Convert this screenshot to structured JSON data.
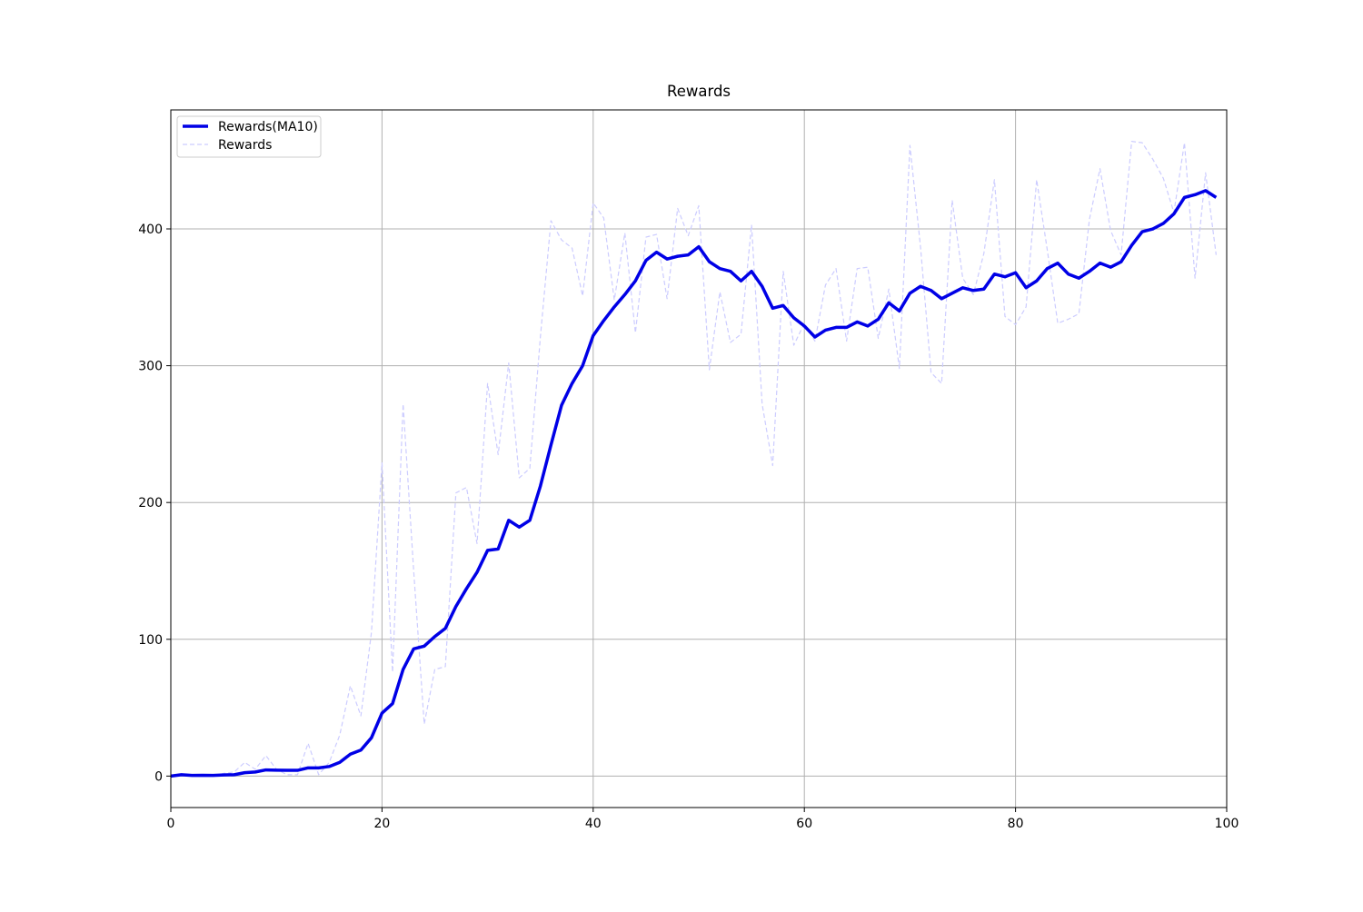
{
  "chart_data": {
    "type": "line",
    "title": "Rewards",
    "x": [
      0,
      1,
      2,
      3,
      4,
      5,
      6,
      7,
      8,
      9,
      10,
      11,
      12,
      13,
      14,
      15,
      16,
      17,
      18,
      19,
      20,
      21,
      22,
      23,
      24,
      25,
      26,
      27,
      28,
      29,
      30,
      31,
      32,
      33,
      34,
      35,
      36,
      37,
      38,
      39,
      40,
      41,
      42,
      43,
      44,
      45,
      46,
      47,
      48,
      49,
      50,
      51,
      52,
      53,
      54,
      55,
      56,
      57,
      58,
      59,
      60,
      61,
      62,
      63,
      64,
      65,
      66,
      67,
      68,
      69,
      70,
      71,
      72,
      73,
      74,
      75,
      76,
      77,
      78,
      79,
      80,
      81,
      82,
      83,
      84,
      85,
      86,
      87,
      88,
      89,
      90,
      91,
      92,
      93,
      94,
      95,
      96,
      97,
      98,
      99
    ],
    "series": [
      {
        "name": "Rewards(MA10)",
        "color": "#0000e6",
        "linestyle": "solid",
        "values": [
          0,
          1,
          0.5,
          0.6,
          0.5,
          0.8,
          1,
          2.5,
          3,
          4.5,
          4.3,
          4.2,
          4.2,
          6,
          6,
          7,
          10,
          16,
          19,
          28,
          46,
          53,
          78,
          93,
          95,
          102,
          108,
          124,
          137,
          149,
          165,
          166,
          187,
          182,
          187,
          212,
          242,
          271,
          287,
          300,
          322,
          333,
          343,
          352,
          362,
          377,
          383,
          378,
          380,
          381,
          387,
          376,
          371,
          369,
          362,
          369,
          358,
          342,
          344,
          335,
          329,
          321,
          326,
          328,
          328,
          332,
          329,
          334,
          346,
          340,
          353,
          358,
          355,
          349,
          353,
          357,
          355,
          356,
          367,
          365,
          368,
          357,
          362,
          371,
          375,
          367,
          364,
          369,
          375,
          372,
          376,
          388,
          398,
          400,
          404,
          411,
          423,
          425,
          428,
          423
        ]
      },
      {
        "name": "Rewards",
        "color": "#ccccff",
        "linestyle": "dashed",
        "values": [
          0,
          1,
          0,
          1,
          0,
          2,
          3,
          10,
          5,
          15,
          5,
          1,
          1,
          24,
          1,
          10,
          30,
          66,
          44,
          105,
          229,
          76,
          272,
          150,
          38,
          78,
          80,
          207,
          211,
          170,
          287,
          235,
          302,
          218,
          225,
          321,
          406,
          392,
          386,
          351,
          419,
          408,
          348,
          397,
          324,
          394,
          396,
          349,
          415,
          395,
          417,
          297,
          354,
          317,
          323,
          403,
          272,
          227,
          369,
          315,
          331,
          318,
          359,
          371,
          318,
          371,
          372,
          320,
          356,
          298,
          461,
          387,
          295,
          287,
          421,
          364,
          352,
          382,
          436,
          336,
          330,
          343,
          436,
          385,
          331,
          334,
          338,
          407,
          444,
          399,
          381,
          464,
          463,
          451,
          437,
          412,
          463,
          364,
          441,
          381
        ]
      }
    ],
    "xlim": [
      0,
      100
    ],
    "xticks": [
      0,
      20,
      40,
      60,
      80,
      100
    ],
    "ylim": [
      -23,
      487
    ],
    "yticks": [
      0,
      100,
      200,
      300,
      400
    ],
    "grid": true,
    "legend": "upper-left"
  }
}
